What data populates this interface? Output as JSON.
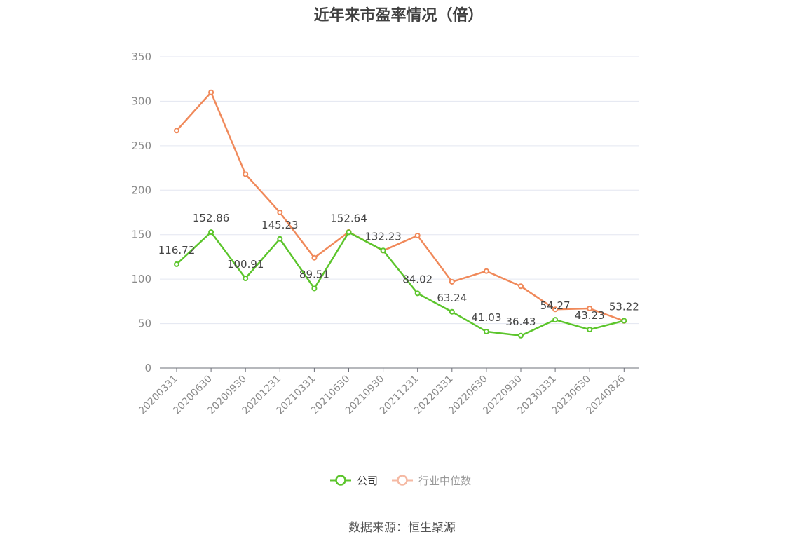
{
  "chart_data": {
    "type": "line",
    "title": "近年来市盈率情况（倍）",
    "xlabel": "",
    "ylabel": "",
    "categories": [
      "20200331",
      "20200630",
      "20200930",
      "20201231",
      "20210331",
      "20210630",
      "20210930",
      "20211231",
      "20220331",
      "20220630",
      "20220930",
      "20230331",
      "20230630",
      "20240826"
    ],
    "ylim": [
      0,
      350
    ],
    "yticks": [
      0,
      50,
      100,
      150,
      200,
      250,
      300,
      350
    ],
    "grid": true,
    "legend_position": "bottom",
    "series": [
      {
        "name": "公司",
        "color": "#5cc52c",
        "values": [
          116.72,
          152.86,
          100.91,
          145.23,
          89.51,
          152.64,
          132.23,
          84.02,
          63.24,
          41.03,
          36.43,
          54.27,
          43.23,
          53.22
        ],
        "labels": [
          "116.72",
          "152.86",
          "100.91",
          "145.23",
          "89.51",
          "152.64",
          "132.23",
          "84.02",
          "63.24",
          "41.03",
          "36.43",
          "54.27",
          "43.23",
          "53.22"
        ]
      },
      {
        "name": "行业中位数",
        "color": "#f0895a",
        "values": [
          267,
          310,
          218,
          175,
          124,
          153,
          132,
          149,
          97,
          109,
          92,
          66,
          67,
          53
        ]
      }
    ]
  },
  "source_note": "数据来源：恒生聚源"
}
